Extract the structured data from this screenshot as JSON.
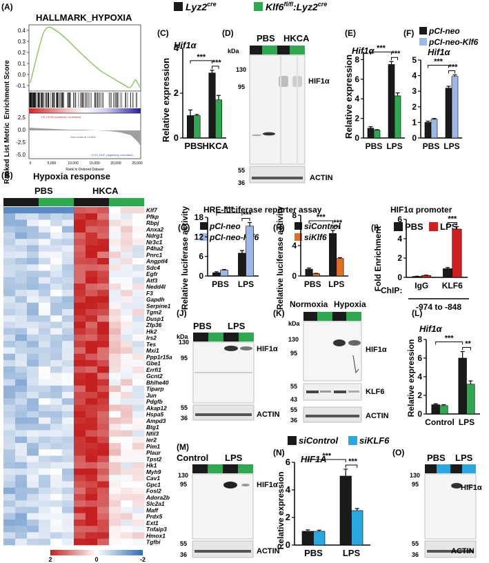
{
  "colors": {
    "black": "#1a1a1a",
    "green": "#2fa84f",
    "lightblue": "#9db8e6",
    "orange": "#e0701f",
    "red": "#d11f1f",
    "cyan": "#2aa6e0"
  },
  "legend_top": {
    "a": "Lyz2",
    "a_sup": "cre",
    "b_italic": "Klf6",
    "b_sup": "fl/fl",
    "b_rest": ":Lyz2",
    "b_sup2": "cre"
  },
  "panelA": {
    "tag": "(A)",
    "title": "HALLMARK_HYPOXIA",
    "ylabel_top": "Enrichment Score",
    "ylabel_bottom": "Ranked List Metric",
    "yticks_top": [
      "0.4",
      "0.3",
      "0.2",
      "0.1",
      "0.0",
      "-0.1"
    ],
    "yticks_bottom": [
      "2.5",
      "0.0",
      "-2.5",
      "-5.0"
    ],
    "xticks": [
      "0",
      "5,000",
      "10,000",
      "15,000",
      "20,000",
      "25,000"
    ],
    "xlabel": "Rank in Ordered Dataset",
    "pos_label": "Hif_DEXB (positively correlated)",
    "zero_label": "Zero cross at 13,504",
    "neg_label": "YLV3_DGF (negatively correlated)"
  },
  "panelB": {
    "tag": "(B)",
    "title": "Hypoxia response",
    "group1": "PBS",
    "group2": "HKCA",
    "genes": [
      "Klf7",
      "Pfkp",
      "Rbpj",
      "Anxa2",
      "Ndrg1",
      "Nr3c1",
      "P4ha2",
      "Pnrc1",
      "Angptl4",
      "Sdc4",
      "Egfr",
      "Atf3",
      "Nedd4l",
      "F3",
      "Gapdh",
      "Serpine1",
      "Tgm2",
      "Dusp1",
      "Zfp36",
      "Hk2",
      "Irs2",
      "Tes",
      "Mxi1",
      "Ppp1r15a",
      "Gbe1",
      "Errfi1",
      "Gcnt2",
      "Bhlhe40",
      "Tiparp",
      "Jun",
      "Pdgfb",
      "Akap12",
      "Hspa5",
      "Ampd3",
      "Btg1",
      "Nfil3",
      "Ier2",
      "Pim1",
      "Plaur",
      "Tpst2",
      "Hk1",
      "Myh9",
      "Cav1",
      "Gpc1",
      "Fosl2",
      "Adora2b",
      "Slc2a1",
      "Maff",
      "Prdx5",
      "Ext1",
      "Tnfaip3",
      "Hmox1",
      "Tgfbi"
    ],
    "scale_min": "2",
    "scale_mid": "0",
    "scale_max": "-2"
  },
  "panelC": {
    "tag": "(C)",
    "gene": "Hif1α",
    "ylabel": "Relative expression",
    "sig1": "***",
    "sig2": "***"
  },
  "panelD": {
    "tag": "(D)",
    "kda": "kDa",
    "group1": "PBS",
    "group2": "HKCA",
    "band1": "HIF1α",
    "band2": "ACTIN",
    "m130": "130",
    "m95": "95",
    "m55": "55",
    "m36": "36"
  },
  "panelE": {
    "tag": "(E)",
    "gene": "Hif1α",
    "ylabel": "Relative expression",
    "sig1": "***",
    "sig2": "***"
  },
  "panelF": {
    "tag": "(F)",
    "gene": "Hif1α",
    "legend1": "pCI-neo",
    "legend2": "pCI-neo-Klf6",
    "sig1": "***",
    "sig2": "***"
  },
  "hre_title": "HRE-luciferase reporter assay",
  "panelG": {
    "tag": "(G)",
    "legend1": "pCI-neo",
    "legend2": "pCI-neo-Klf6",
    "ylabel": "Relative luciferase activity",
    "sig1": "***",
    "sig2": "***"
  },
  "panelH": {
    "tag": "(H)",
    "legend1": "siControl",
    "legend2": "siKlf6",
    "ylabel": "Relative luciferase activity",
    "sig1": "***",
    "sig2": "***"
  },
  "panelI": {
    "tag": "(I)",
    "title": "HIF1α promoter",
    "legend1": "PBS",
    "legend2": "LPS",
    "ylabel": "Fold Enrichment",
    "chip": "ChIP:",
    "cat1": "IgG",
    "cat2": "KLF6",
    "region": "-974 to -848",
    "sig": "***"
  },
  "panelJ": {
    "tag": "(J)",
    "kda": "kDa",
    "group1": "PBS",
    "group2": "LPS",
    "band1": "HIF1α",
    "band2": "ACTIN",
    "m130": "130",
    "m95": "95",
    "m55": "55",
    "m36": "36"
  },
  "panelK": {
    "tag": "(K)",
    "group1": "Normoxia",
    "group2": "Hypoxia",
    "kda": "kDa",
    "band1": "HIF1α",
    "band2": "KLF6",
    "band3": "ACTIN",
    "m130": "130",
    "m95": "95",
    "m55": "55",
    "m43": "43",
    "m36": "36"
  },
  "panelL": {
    "tag": "(L)",
    "gene": "Hif1α",
    "ylabel": "Relative expression",
    "sig1": "***",
    "sig2": "**"
  },
  "panelM": {
    "tag": "(M)",
    "group1": "Control",
    "group2": "LPS",
    "kda": "kDa",
    "band1": "HIF1α",
    "band2": "ACTIN",
    "m130": "130",
    "m95": "95",
    "m55": "55",
    "m36": "36"
  },
  "panelN": {
    "tag": "(N)",
    "legend1": "siControl",
    "legend2": "siKLF6",
    "gene": "HIF1A",
    "ylabel": "Relative expression",
    "sig1": "***",
    "sig2": "***"
  },
  "panelO": {
    "tag": "(O)",
    "group1": "PBS",
    "group2": "LPS",
    "band1": "HIF1α",
    "band2": "ACTIN",
    "m130": "130",
    "m95": "95",
    "m55": "55",
    "m36": "36"
  },
  "chart_data": [
    {
      "id": "C",
      "type": "bar",
      "title": "Hif1α",
      "categories": [
        "PBS",
        "HKCA"
      ],
      "series": [
        {
          "name": "Lyz2cre",
          "values": [
            1.0,
            2.9
          ],
          "errors": [
            0.25,
            0.12
          ]
        },
        {
          "name": "Klf6fl/fl:Lyz2cre",
          "values": [
            1.0,
            1.7
          ],
          "errors": [
            0.05,
            0.2
          ]
        }
      ],
      "ylabel": "Relative expression",
      "yticks": [
        0,
        2,
        4
      ],
      "ylim": [
        0,
        4
      ]
    },
    {
      "id": "E",
      "type": "bar",
      "title": "Hif1α",
      "categories": [
        "PBS",
        "LPS"
      ],
      "series": [
        {
          "name": "Lyz2cre",
          "values": [
            1.0,
            7.5
          ],
          "errors": [
            0.15,
            0.3
          ]
        },
        {
          "name": "Klf6fl/fl:Lyz2cre",
          "values": [
            0.8,
            4.3
          ],
          "errors": [
            0.05,
            0.3
          ]
        }
      ],
      "ylabel": "Relative expression",
      "yticks": [
        0,
        2,
        4,
        6,
        8
      ],
      "ylim": [
        0,
        8.8
      ]
    },
    {
      "id": "F",
      "type": "bar",
      "title": "Hif1α",
      "categories": [
        "PBS",
        "LPS"
      ],
      "series": [
        {
          "name": "pCI-neo",
          "values": [
            1.0,
            3.2
          ],
          "errors": [
            0.08,
            0.12
          ]
        },
        {
          "name": "pCI-neo-Klf6",
          "values": [
            1.2,
            3.95
          ],
          "errors": [
            0.05,
            0.1
          ]
        }
      ],
      "ylabel": "",
      "yticks": [
        0,
        1,
        2,
        3,
        4,
        5
      ],
      "ylim": [
        0,
        5
      ]
    },
    {
      "id": "G",
      "type": "bar",
      "title": "",
      "categories": [
        "PBS",
        "LPS"
      ],
      "series": [
        {
          "name": "pCI-neo",
          "values": [
            1.0,
            7.0
          ],
          "errors": [
            0.3,
            0.8
          ]
        },
        {
          "name": "pCI-neo-Klf6",
          "values": [
            1.8,
            15.3
          ],
          "errors": [
            0.2,
            1.1
          ]
        }
      ],
      "ylabel": "Relative luciferase activity",
      "yticks": [
        0,
        6,
        12,
        18
      ],
      "ylim": [
        0,
        18
      ]
    },
    {
      "id": "H",
      "type": "bar",
      "title": "",
      "categories": [
        "PBS",
        "LPS"
      ],
      "series": [
        {
          "name": "siControl",
          "values": [
            0.9,
            5.6
          ],
          "errors": [
            0.15,
            0.4
          ]
        },
        {
          "name": "siKlf6",
          "values": [
            0.3,
            2.3
          ],
          "errors": [
            0.05,
            0.12
          ]
        }
      ],
      "ylabel": "Relative luciferase activity",
      "yticks": [
        0,
        4,
        8
      ],
      "ylim": [
        0,
        8
      ]
    },
    {
      "id": "I",
      "type": "bar",
      "title": "HIF1α promoter",
      "categories": [
        "IgG",
        "KLF6"
      ],
      "series": [
        {
          "name": "PBS",
          "values": [
            0.1,
            0.9
          ],
          "errors": [
            0.02,
            0.12
          ]
        },
        {
          "name": "LPS",
          "values": [
            0.2,
            5.0
          ],
          "errors": [
            0.03,
            0.25
          ]
        }
      ],
      "ylabel": "Fold Enrichment",
      "yticks": [
        0,
        2,
        4,
        6
      ],
      "ylim": [
        0,
        6
      ]
    },
    {
      "id": "L",
      "type": "bar",
      "title": "Hif1α",
      "categories": [
        "Control",
        "LPS"
      ],
      "series": [
        {
          "name": "Lyz2cre",
          "values": [
            1.0,
            6.0
          ],
          "errors": [
            0.1,
            0.7
          ]
        },
        {
          "name": "Klf6fl/fl:Lyz2cre",
          "values": [
            0.9,
            3.2
          ],
          "errors": [
            0.1,
            0.35
          ]
        }
      ],
      "ylabel": "Relative expression",
      "yticks": [
        0,
        2,
        4,
        6,
        8
      ],
      "ylim": [
        0,
        8
      ]
    },
    {
      "id": "N",
      "type": "bar",
      "title": "HIF1A",
      "categories": [
        "PBS",
        "LPS"
      ],
      "series": [
        {
          "name": "siControl",
          "values": [
            1.0,
            5.0
          ],
          "errors": [
            0.1,
            0.5
          ]
        },
        {
          "name": "siKLF6",
          "values": [
            1.0,
            2.5
          ],
          "errors": [
            0.08,
            0.15
          ]
        }
      ],
      "ylabel": "Relative expression",
      "yticks": [
        0,
        2,
        4,
        6
      ],
      "ylim": [
        0,
        6
      ]
    }
  ]
}
